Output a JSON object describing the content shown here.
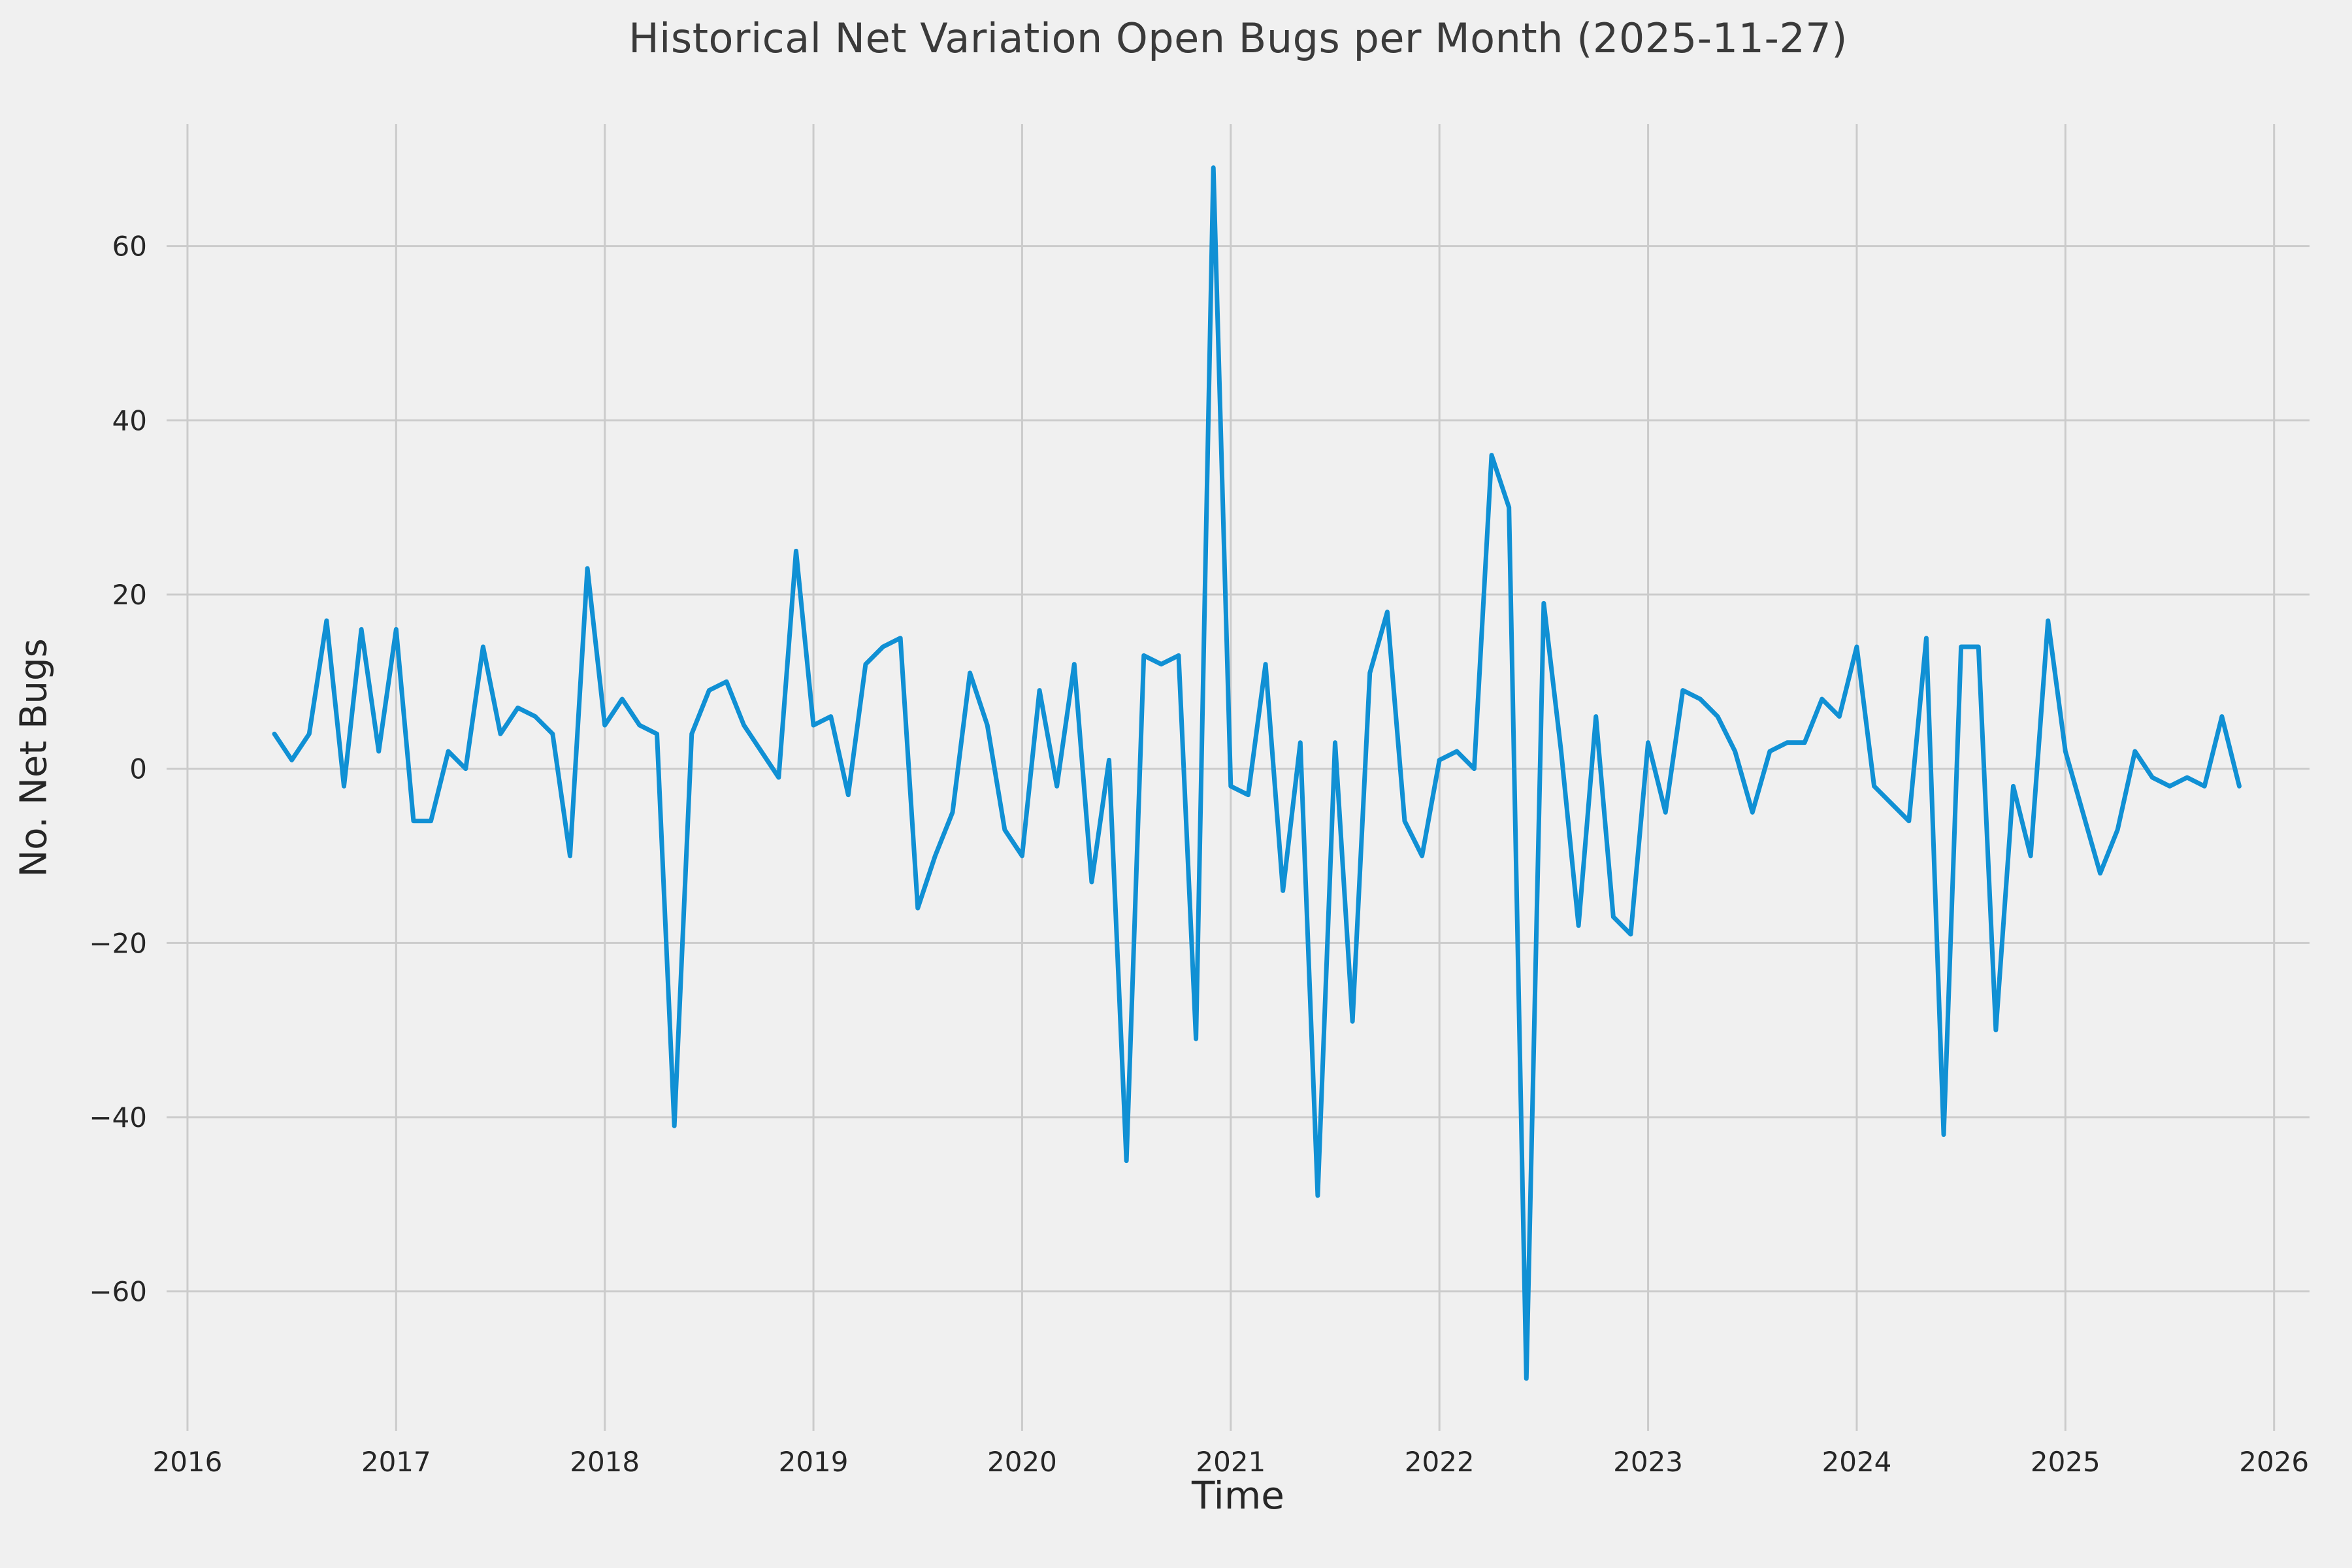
{
  "chart_data": {
    "type": "line",
    "title": "Historical Net Variation Open Bugs per Month (2025-11-27)",
    "xlabel": "Time",
    "ylabel": "No. Net Bugs",
    "xlim": [
      2015.9,
      2026.17
    ],
    "ylim": [
      -76,
      74
    ],
    "grid": true,
    "legend": "none",
    "xticks": {
      "values": [
        2016,
        2017,
        2018,
        2019,
        2020,
        2021,
        2022,
        2023,
        2024,
        2025,
        2026
      ],
      "labels": [
        "2016",
        "2017",
        "2018",
        "2019",
        "2020",
        "2021",
        "2022",
        "2023",
        "2024",
        "2025",
        "2026"
      ]
    },
    "yticks": {
      "values": [
        -60,
        -40,
        -20,
        0,
        20,
        40,
        60
      ],
      "labels": [
        "−60",
        "−40",
        "−20",
        "0",
        "20",
        "40",
        "60"
      ]
    },
    "colors": {
      "line": "#1090d4",
      "grid": "#cbcbcb",
      "background": "#f0f0f0",
      "text": "#262626"
    },
    "series": [
      {
        "name": "net-open-bugs-per-month",
        "start_year": 2016,
        "start_month": 6,
        "frequency": "monthly",
        "values": [
          4,
          1,
          4,
          17,
          -2,
          16,
          2,
          16,
          -6,
          -6,
          2,
          0,
          14,
          4,
          7,
          6,
          4,
          -10,
          23,
          5,
          8,
          5,
          4,
          -41,
          4,
          9,
          10,
          5,
          2,
          -1,
          25,
          5,
          6,
          -3,
          12,
          14,
          15,
          -16,
          -10,
          -5,
          11,
          5,
          -7,
          -10,
          9,
          -2,
          12,
          -13,
          1,
          -45,
          13,
          12,
          13,
          -31,
          69,
          -2,
          -3,
          12,
          -14,
          3,
          -49,
          3,
          -29,
          11,
          18,
          -6,
          -10,
          1,
          2,
          0,
          36,
          30,
          -70,
          19,
          2,
          -18,
          6,
          -17,
          -19,
          3,
          -5,
          9,
          8,
          6,
          2,
          -5,
          2,
          3,
          3,
          8,
          6,
          14,
          -2,
          -4,
          -6,
          15,
          -42,
          14,
          14,
          -30,
          -2,
          -10,
          17,
          2,
          -5,
          -12,
          -7,
          2,
          -1,
          -2,
          -1,
          -2,
          6,
          -2
        ]
      }
    ]
  }
}
